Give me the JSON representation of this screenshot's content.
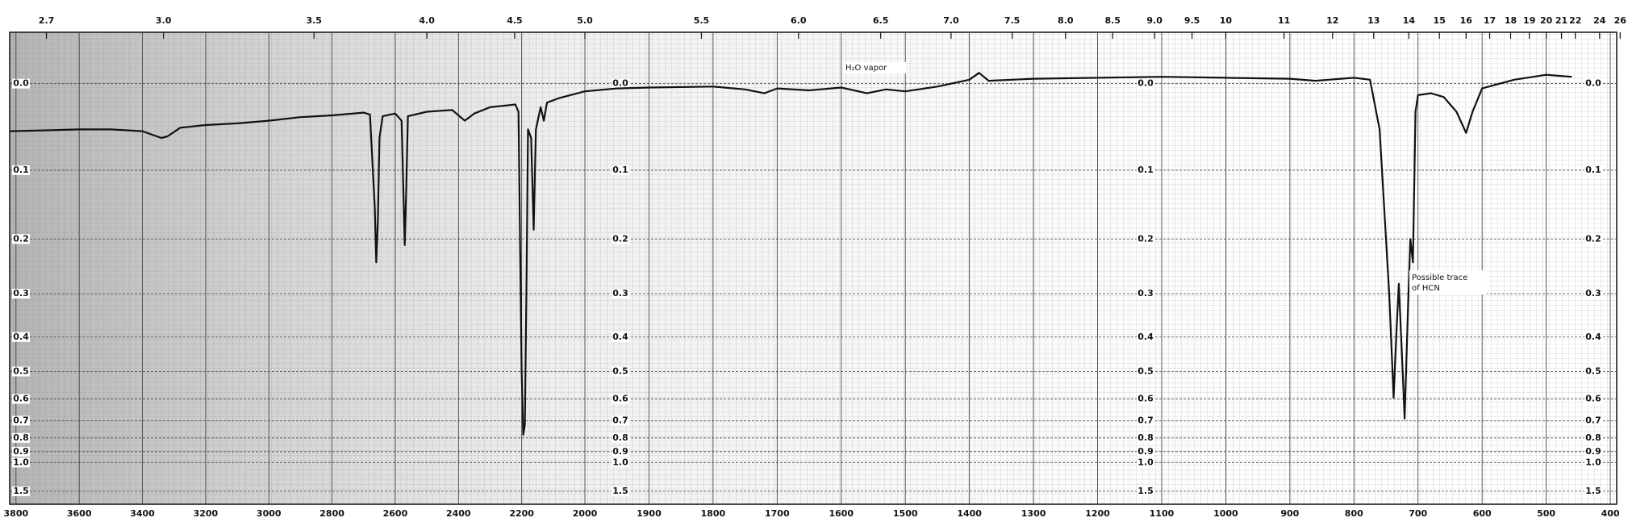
{
  "chart_data": {
    "type": "line",
    "x": [
      3820,
      3700,
      3600,
      3500,
      3400,
      3340,
      3320,
      3280,
      3200,
      3100,
      3000,
      2900,
      2800,
      2700,
      2680,
      2665,
      2660,
      2655,
      2650,
      2640,
      2600,
      2580,
      2570,
      2565,
      2560,
      2500,
      2420,
      2380,
      2350,
      2300,
      2220,
      2210,
      2200,
      2195,
      2190,
      2185,
      2180,
      2170,
      2162,
      2155,
      2140,
      2130,
      2120,
      2080,
      2000,
      1950,
      1900,
      1800,
      1750,
      1720,
      1700,
      1650,
      1600,
      1560,
      1530,
      1500,
      1450,
      1400,
      1385,
      1370,
      1300,
      1200,
      1100,
      1000,
      900,
      860,
      800,
      775,
      760,
      745,
      738,
      734,
      730,
      724,
      721,
      716,
      712,
      708,
      704,
      700,
      680,
      660,
      640,
      625,
      615,
      600,
      550,
      500,
      480,
      460
    ],
    "series": [
      {
        "color": "#111111",
        "values": [
          0.052,
          0.051,
          0.05,
          0.05,
          0.052,
          0.06,
          0.058,
          0.048,
          0.045,
          0.043,
          0.04,
          0.036,
          0.034,
          0.031,
          0.033,
          0.15,
          0.24,
          0.17,
          0.06,
          0.035,
          0.032,
          0.04,
          0.21,
          0.12,
          0.035,
          0.03,
          0.028,
          0.04,
          0.032,
          0.025,
          0.022,
          0.03,
          0.5,
          0.78,
          0.72,
          0.3,
          0.05,
          0.06,
          0.185,
          0.05,
          0.025,
          0.04,
          0.02,
          0.015,
          0.008,
          0.005,
          0.004,
          0.003,
          0.006,
          0.01,
          0.005,
          0.007,
          0.004,
          0.01,
          0.006,
          0.008,
          0.003,
          -0.004,
          -0.011,
          -0.003,
          -0.005,
          -0.006,
          -0.007,
          -0.006,
          -0.005,
          -0.003,
          -0.006,
          -0.004,
          0.05,
          0.3,
          0.595,
          0.4,
          0.28,
          0.5,
          0.69,
          0.35,
          0.2,
          0.24,
          0.03,
          0.012,
          0.01,
          0.014,
          0.03,
          0.054,
          0.03,
          0.005,
          -0.004,
          -0.009,
          -0.008,
          -0.007
        ]
      }
    ],
    "xlim": [
      3820,
      390
    ],
    "x_break": 2000,
    "xticks": [
      3800,
      3600,
      3400,
      3200,
      3000,
      2800,
      2600,
      2400,
      2200,
      2000,
      1900,
      1800,
      1700,
      1600,
      1500,
      1400,
      1300,
      1200,
      1100,
      1000,
      900,
      800,
      700,
      600,
      500,
      400
    ],
    "x2ticks": [
      2.7,
      {
        "value": 3,
        "label": "3.0"
      },
      3.5,
      {
        "value": 4,
        "label": "4.0"
      },
      4.5,
      {
        "value": 5,
        "label": "5.0"
      },
      5.5,
      {
        "value": 6,
        "label": "6.0"
      },
      6.5,
      {
        "value": 7,
        "label": "7.0"
      },
      7.5,
      {
        "value": 8,
        "label": "8.0"
      },
      8.5,
      {
        "value": 9,
        "label": "9.0"
      },
      9.5,
      10,
      11,
      12,
      13,
      14,
      15,
      16,
      17,
      18,
      19,
      20,
      21,
      22,
      24,
      26
    ],
    "yscale": "absorbance",
    "ylim": [
      -0.05,
      3
    ],
    "yticks": [
      {
        "value": 0,
        "label": "0.0"
      },
      0.1,
      0.2,
      0.3,
      0.4,
      0.5,
      0.6,
      0.7,
      0.8,
      0.9,
      {
        "value": 1,
        "label": "1.0"
      },
      1.5
    ],
    "grid": true,
    "annotations": [
      {
        "text": "H₂O vapor"
      },
      {
        "text": [
          "Possible trace",
          "of HCN"
        ]
      }
    ]
  }
}
